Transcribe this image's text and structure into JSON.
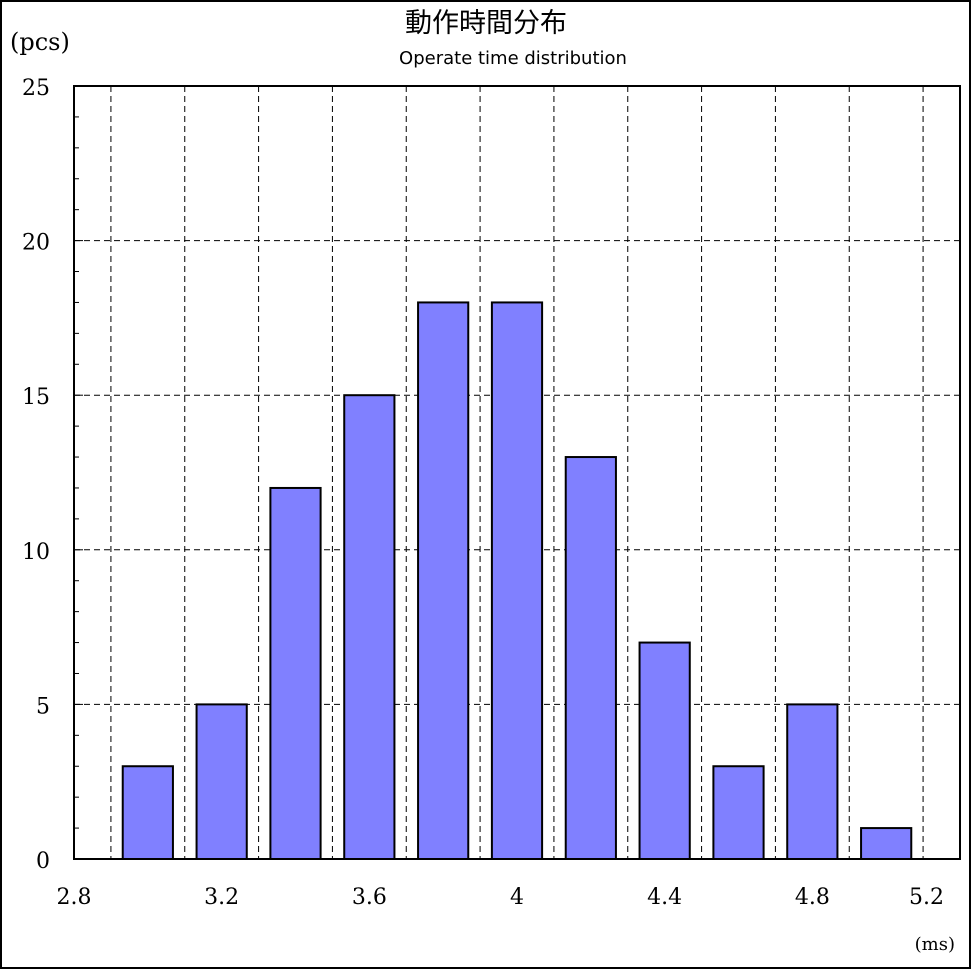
{
  "chart_data": {
    "type": "bar",
    "title": "動作時間分布",
    "subtitle": "Operate time distribution",
    "ylabel": "(pcs)",
    "xlabel": "(ms)",
    "x": [
      3.0,
      3.2,
      3.4,
      3.6,
      3.8,
      4.0,
      4.2,
      4.4,
      4.6,
      4.8,
      5.0
    ],
    "values": [
      3,
      5,
      12,
      15,
      18,
      18,
      13,
      7,
      3,
      5,
      1
    ],
    "xlim": [
      2.8,
      5.2
    ],
    "ylim": [
      0,
      25
    ],
    "x_ticks": [
      "2.8",
      "3.2",
      "3.6",
      "4",
      "4.4",
      "4.8",
      "5.2"
    ],
    "y_ticks": [
      "0",
      "5",
      "10",
      "15",
      "20",
      "25"
    ],
    "grid": true,
    "bar_color": "#8080ff"
  }
}
